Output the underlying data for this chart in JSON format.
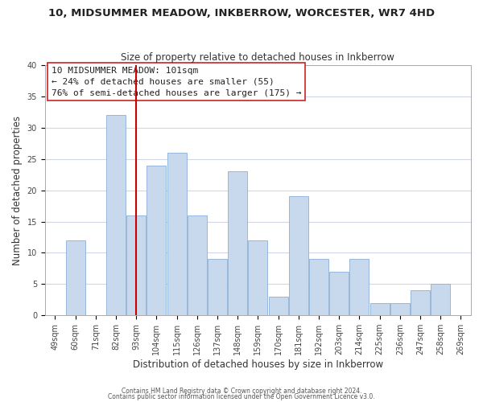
{
  "title": "10, MIDSUMMER MEADOW, INKBERROW, WORCESTER, WR7 4HD",
  "subtitle": "Size of property relative to detached houses in Inkberrow",
  "xlabel": "Distribution of detached houses by size in Inkberrow",
  "ylabel": "Number of detached properties",
  "bar_labels": [
    "49sqm",
    "60sqm",
    "71sqm",
    "82sqm",
    "93sqm",
    "104sqm",
    "115sqm",
    "126sqm",
    "137sqm",
    "148sqm",
    "159sqm",
    "170sqm",
    "181sqm",
    "192sqm",
    "203sqm",
    "214sqm",
    "225sqm",
    "236sqm",
    "247sqm",
    "258sqm",
    "269sqm"
  ],
  "bar_values": [
    0,
    12,
    0,
    32,
    16,
    24,
    26,
    16,
    9,
    23,
    12,
    3,
    19,
    9,
    7,
    9,
    2,
    2,
    4,
    5,
    0
  ],
  "bar_color": "#c8d9ee",
  "bar_edge_color": "#8ab0d8",
  "vline_x_index": 4.5,
  "vline_color": "#cc0000",
  "ylim": [
    0,
    40
  ],
  "yticks": [
    0,
    5,
    10,
    15,
    20,
    25,
    30,
    35,
    40
  ],
  "annotation_title": "10 MIDSUMMER MEADOW: 101sqm",
  "annotation_line1": "← 24% of detached houses are smaller (55)",
  "annotation_line2": "76% of semi-detached houses are larger (175) →",
  "footer_line1": "Contains HM Land Registry data © Crown copyright and database right 2024.",
  "footer_line2": "Contains public sector information licensed under the Open Government Licence v3.0.",
  "background_color": "#ffffff",
  "grid_color": "#d0d8e8",
  "title_fontsize": 9.5,
  "subtitle_fontsize": 8.5,
  "axis_label_fontsize": 8.5,
  "tick_fontsize": 7,
  "annotation_fontsize": 8,
  "footer_fontsize": 5.5
}
